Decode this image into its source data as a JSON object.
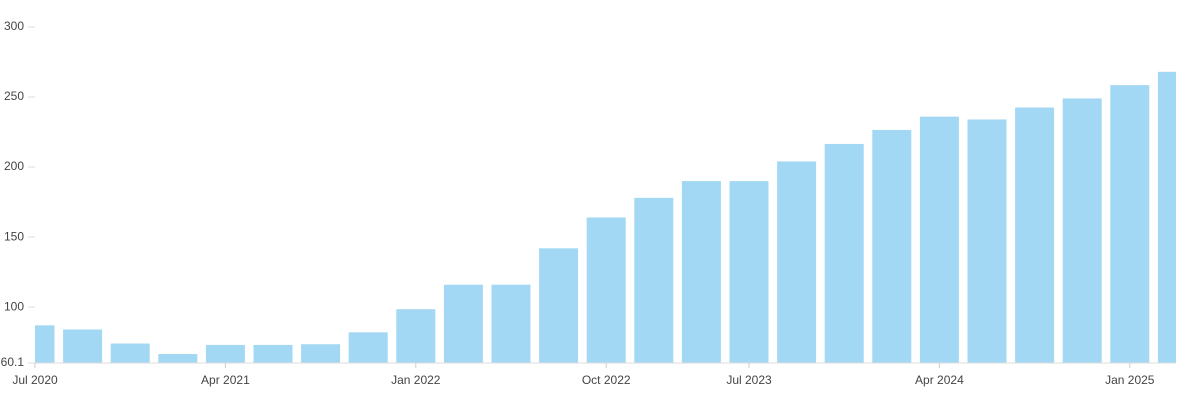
{
  "chart_data": {
    "type": "bar",
    "categories": [
      "Jul 2020",
      null,
      null,
      null,
      "Apr 2021",
      null,
      null,
      null,
      "Jan 2022",
      null,
      null,
      null,
      "Oct 2022",
      null,
      null,
      "Jul 2023",
      null,
      null,
      null,
      "Apr 2024",
      null,
      null,
      null,
      "Jan 2025",
      null
    ],
    "values": [
      87,
      84,
      74,
      66.5,
      73,
      73,
      73.5,
      82,
      98.5,
      116,
      116,
      142,
      164,
      178,
      190,
      190,
      204,
      216.5,
      226.5,
      236,
      234,
      242.5,
      249,
      258.5,
      268
    ],
    "color": "#a3d8f4",
    "ylim": [
      60.1,
      300
    ],
    "yticks": [
      60.1,
      100,
      150,
      200,
      250,
      300
    ]
  }
}
